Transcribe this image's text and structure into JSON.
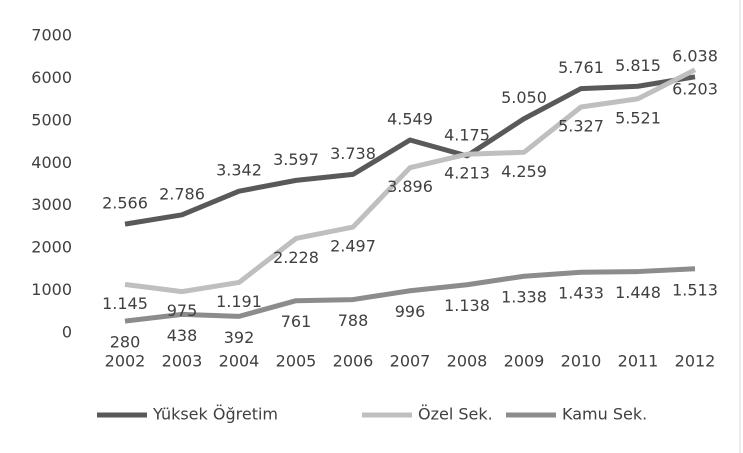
{
  "chart_data": {
    "type": "line",
    "categories": [
      "2002",
      "2003",
      "2004",
      "2005",
      "2006",
      "2007",
      "2008",
      "2009",
      "2010",
      "2011",
      "2012"
    ],
    "series": [
      {
        "name": "Yüksek Öğretim",
        "color": "#595959",
        "values": [
          2566,
          2786,
          3342,
          3597,
          3738,
          4549,
          4175,
          5050,
          5761,
          5815,
          6038
        ],
        "value_labels": [
          "2.566",
          "2.786",
          "3.342",
          "3.597",
          "3.738",
          "4.549",
          "4.175",
          "5.050",
          "5.761",
          "5.815",
          "6.038"
        ]
      },
      {
        "name": "Özel Sek.",
        "color": "#bfbfbf",
        "values": [
          1145,
          975,
          1191,
          2228,
          2497,
          3896,
          4213,
          4259,
          5327,
          5521,
          6203
        ],
        "value_labels": [
          "1.145",
          "975",
          "1.191",
          "2.228",
          "2.497",
          "3.896",
          "4.213",
          "4.259",
          "5.327",
          "5.521",
          "6.203"
        ]
      },
      {
        "name": "Kamu Sek.",
        "color": "#8c8c8c",
        "values": [
          280,
          438,
          392,
          761,
          788,
          996,
          1138,
          1338,
          1433,
          1448,
          1513
        ],
        "value_labels": [
          "280",
          "438",
          "392",
          "761",
          "788",
          "996",
          "1.138",
          "1.338",
          "1.433",
          "1.448",
          "1.513"
        ]
      }
    ],
    "ylim": [
      0,
      7000
    ],
    "yticks": [
      0,
      1000,
      2000,
      3000,
      4000,
      5000,
      6000,
      7000
    ],
    "grid": false,
    "legend": "bottom"
  }
}
